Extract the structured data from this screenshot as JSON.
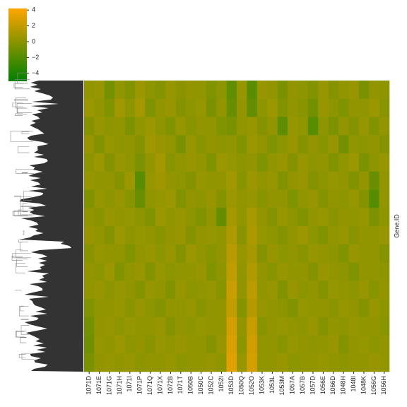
{
  "chart_data": {
    "type": "heatmap",
    "categories": [
      "1071D",
      "1071E",
      "1071G",
      "1071H",
      "1071I",
      "1071P",
      "1071Q",
      "1071X",
      "1072B",
      "1071T",
      "1050B",
      "1050C",
      "1052C",
      "1052I",
      "1053D",
      "1050Q",
      "1052O",
      "1053K",
      "1053L",
      "1053M",
      "1057A",
      "1057B",
      "1057D",
      "1056E",
      "1066D",
      "1048H",
      "1048I",
      "1048K",
      "1056G",
      "1056H"
    ],
    "y_label": "Gene.ID",
    "colors": [
      "#008000",
      "#ffa500"
    ],
    "zlim": [
      -5,
      4.2
    ],
    "zticks": [
      4,
      2,
      0,
      {
        "value": -2,
        "label": "−2"
      },
      {
        "value": -4,
        "label": "−4"
      }
    ],
    "values": [
      [
        0.3,
        0.5,
        -0.8,
        0.2,
        -0.3,
        0.6,
        0.1,
        -0.2,
        0.4,
        0.0,
        0.3,
        0.2,
        -0.4,
        0.1,
        -1.5,
        0.4,
        -1.8,
        0.5,
        0.2,
        -0.6,
        0.3,
        0.1,
        -0.3,
        0.4,
        -0.2,
        0.2,
        0.5,
        -0.6,
        0.3,
        0.1
      ],
      [
        0.6,
        0.2,
        -0.3,
        0.8,
        0.1,
        0.9,
        -0.4,
        0.3,
        0.5,
        -0.2,
        0.1,
        0.4,
        -0.6,
        0.2,
        -1.2,
        0.3,
        -1.4,
        0.1,
        0.6,
        -0.3,
        0.2,
        -0.1,
        -0.9,
        0.5,
        0.1,
        -0.4,
        0.3,
        0.2,
        0.6,
        -0.1
      ],
      [
        -0.2,
        0.4,
        0.1,
        0.3,
        -0.5,
        0.2,
        0.6,
        0.1,
        -0.3,
        0.4,
        -0.1,
        0.3,
        0.2,
        -0.4,
        -0.6,
        0.2,
        0.5,
        -0.2,
        0.3,
        -1.6,
        0.4,
        0.2,
        -1.8,
        0.1,
        -0.5,
        0.3,
        -0.2,
        0.4,
        -0.3,
        0.2
      ],
      [
        0.5,
        -0.3,
        0.4,
        0.1,
        0.3,
        -0.2,
        0.8,
        0.5,
        0.2,
        -0.6,
        0.4,
        -0.1,
        0.3,
        0.1,
        0.2,
        -0.3,
        0.6,
        0.3,
        -0.4,
        0.1,
        0.5,
        -0.2,
        0.3,
        -0.1,
        0.4,
        -0.8,
        0.2,
        0.1,
        0.3,
        -0.2
      ],
      [
        0.1,
        0.6,
        -0.2,
        0.4,
        0.2,
        -0.5,
        0.3,
        0.9,
        -0.1,
        0.2,
        0.5,
        0.3,
        -0.3,
        0.6,
        0.4,
        0.1,
        0.3,
        -0.4,
        0.2,
        0.5,
        -0.2,
        0.4,
        0.1,
        0.3,
        -0.3,
        0.2,
        0.6,
        -0.5,
        0.1,
        0.4
      ],
      [
        0.4,
        0.2,
        0.3,
        -0.2,
        0.6,
        -1.8,
        0.5,
        0.7,
        0.3,
        0.1,
        -0.2,
        0.4,
        0.2,
        0.3,
        0.8,
        -0.1,
        0.6,
        0.2,
        0.4,
        -0.3,
        0.3,
        0.5,
        -0.2,
        0.1,
        0.4,
        0.2,
        -0.3,
        0.3,
        -1.2,
        0.2
      ],
      [
        -0.3,
        0.4,
        0.1,
        0.5,
        -0.1,
        -1.2,
        0.2,
        0.4,
        0.6,
        -0.3,
        0.3,
        0.1,
        0.5,
        -0.2,
        0.6,
        0.3,
        0.4,
        -0.1,
        0.2,
        0.3,
        -0.4,
        0.2,
        0.5,
        -0.2,
        0.3,
        0.1,
        0.4,
        -0.2,
        -1.9,
        0.3
      ],
      [
        0.2,
        -0.1,
        0.5,
        0.3,
        0.4,
        0.1,
        -0.3,
        0.6,
        0.2,
        0.4,
        0.1,
        -0.4,
        0.3,
        -1.4,
        0.9,
        0.2,
        1.1,
        0.3,
        -0.2,
        0.4,
        0.1,
        -0.3,
        0.2,
        0.5,
        -0.1,
        0.3,
        0.2,
        0.4,
        -0.5,
        0.1
      ],
      [
        0.5,
        0.3,
        -0.2,
        0.6,
        0.1,
        0.4,
        0.2,
        -0.1,
        0.3,
        0.5,
        -0.2,
        0.3,
        0.4,
        0.2,
        1.3,
        -0.1,
        1.2,
        0.4,
        0.1,
        -0.2,
        0.3,
        0.6,
        0.1,
        -0.3,
        0.2,
        0.4,
        -0.1,
        0.3,
        0.2,
        0.5
      ],
      [
        -0.1,
        0.4,
        0.3,
        0.2,
        -0.4,
        0.3,
        0.5,
        0.1,
        0.4,
        -0.2,
        0.6,
        0.2,
        -0.1,
        0.3,
        1.6,
        0.4,
        1.0,
        -0.2,
        0.5,
        0.1,
        0.2,
        -0.1,
        0.4,
        0.3,
        0.1,
        -0.3,
        0.5,
        0.2,
        0.3,
        -0.2
      ],
      [
        0.3,
        0.1,
        0.6,
        -0.3,
        0.2,
        0.5,
        -0.2,
        0.4,
        0.1,
        0.3,
        0.2,
        0.5,
        -0.3,
        0.1,
        1.9,
        0.2,
        1.4,
        0.3,
        -0.1,
        0.4,
        0.2,
        0.3,
        -0.2,
        0.5,
        0.3,
        0.1,
        -0.4,
        0.3,
        0.2,
        0.1
      ],
      [
        0.2,
        0.5,
        0.1,
        0.4,
        0.3,
        -0.2,
        0.4,
        0.2,
        -0.3,
        0.5,
        0.1,
        0.2,
        0.4,
        -0.1,
        2.3,
        0.3,
        1.8,
        0.2,
        0.4,
        -0.3,
        0.5,
        0.1,
        0.3,
        -0.2,
        0.4,
        0.2,
        0.1,
        0.5,
        -0.1,
        0.3
      ],
      [
        -0.4,
        0.2,
        0.3,
        0.5,
        -0.1,
        0.4,
        0.1,
        -0.2,
        0.3,
        0.2,
        0.4,
        -0.1,
        0.2,
        0.3,
        2.0,
        -0.2,
        1.5,
        0.4,
        0.2,
        0.1,
        -0.3,
        0.4,
        0.2,
        0.3,
        -0.1,
        0.5,
        0.3,
        -0.2,
        0.4,
        0.1
      ],
      [
        -0.8,
        0.3,
        0.5,
        0.1,
        0.4,
        0.2,
        0.3,
        0.5,
        -0.2,
        0.3,
        0.1,
        0.4,
        0.3,
        0.2,
        2.6,
        0.3,
        2.2,
        -0.1,
        0.3,
        0.4,
        0.2,
        0.1,
        0.5,
        -0.2,
        0.3,
        0.1,
        0.4,
        0.2,
        0.3,
        -0.1
      ],
      [
        -1.0,
        0.4,
        0.2,
        0.6,
        0.1,
        0.3,
        -0.1,
        0.4,
        0.2,
        0.5,
        0.3,
        0.2,
        -0.2,
        0.4,
        2.9,
        0.1,
        2.5,
        0.3,
        0.2,
        -0.1,
        0.4,
        0.3,
        0.1,
        0.2,
        0.5,
        -0.2,
        0.3,
        0.4,
        0.1,
        0.2
      ],
      [
        -0.6,
        0.3,
        0.4,
        0.2,
        0.5,
        0.1,
        0.3,
        0.2,
        0.4,
        0.1,
        0.2,
        0.3,
        0.5,
        0.1,
        3.1,
        0.4,
        2.7,
        0.2,
        0.3,
        0.5,
        0.1,
        0.2,
        0.3,
        0.4,
        0.2,
        0.1,
        0.3,
        0.2,
        0.5,
        0.3
      ]
    ]
  }
}
